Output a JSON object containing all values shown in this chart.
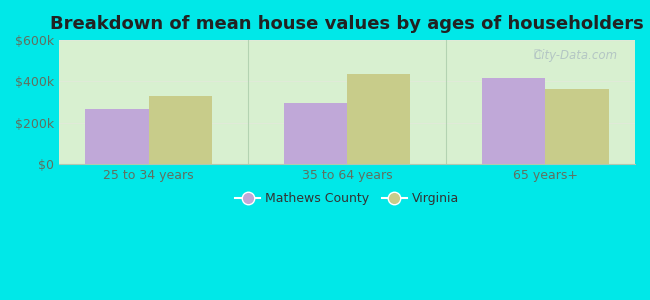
{
  "title": "Breakdown of mean house values by ages of householders",
  "categories": [
    "25 to 34 years",
    "35 to 64 years",
    "65 years+"
  ],
  "mathews_values": [
    265000,
    295000,
    415000
  ],
  "virginia_values": [
    330000,
    435000,
    365000
  ],
  "mathews_color": "#c0a8d8",
  "virginia_color": "#c8cc8a",
  "background_outer": "#00e8e8",
  "background_inner_color": "#d8f0d0",
  "ylim": [
    0,
    600000
  ],
  "yticks": [
    0,
    200000,
    400000,
    600000
  ],
  "ytick_labels": [
    "$0",
    "$200k",
    "$400k",
    "$600k"
  ],
  "legend_labels": [
    "Mathews County",
    "Virginia"
  ],
  "bar_width": 0.32,
  "title_fontsize": 13,
  "tick_fontsize": 9,
  "legend_fontsize": 9,
  "watermark": "City-Data.com",
  "separator_color": "#aaccaa",
  "grid_color": "#e0ead8"
}
